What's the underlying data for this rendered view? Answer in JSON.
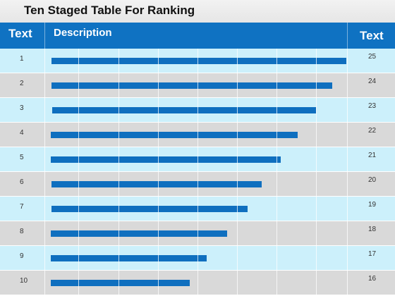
{
  "title": "Ten Staged Table For Ranking",
  "header": {
    "left_label": "Text",
    "middle_label": "Description",
    "right_label": "Text"
  },
  "colors": {
    "header_blue": "#0f72c2",
    "bar_blue": "#0f6fbf",
    "row_light_blue": "#ccf0fb",
    "row_gray": "#d9d9d9"
  },
  "chart_data": {
    "type": "bar",
    "orientation": "horizontal",
    "categories": [
      "1",
      "2",
      "3",
      "4",
      "5",
      "6",
      "7",
      "8",
      "9",
      "10"
    ],
    "values": [
      25,
      24,
      23,
      22,
      21,
      20,
      19,
      18,
      17,
      16
    ],
    "bar_values": [
      0.87,
      0.83,
      0.78,
      0.73,
      0.68,
      0.62,
      0.58,
      0.52,
      0.46,
      0.41
    ],
    "grid": true
  }
}
